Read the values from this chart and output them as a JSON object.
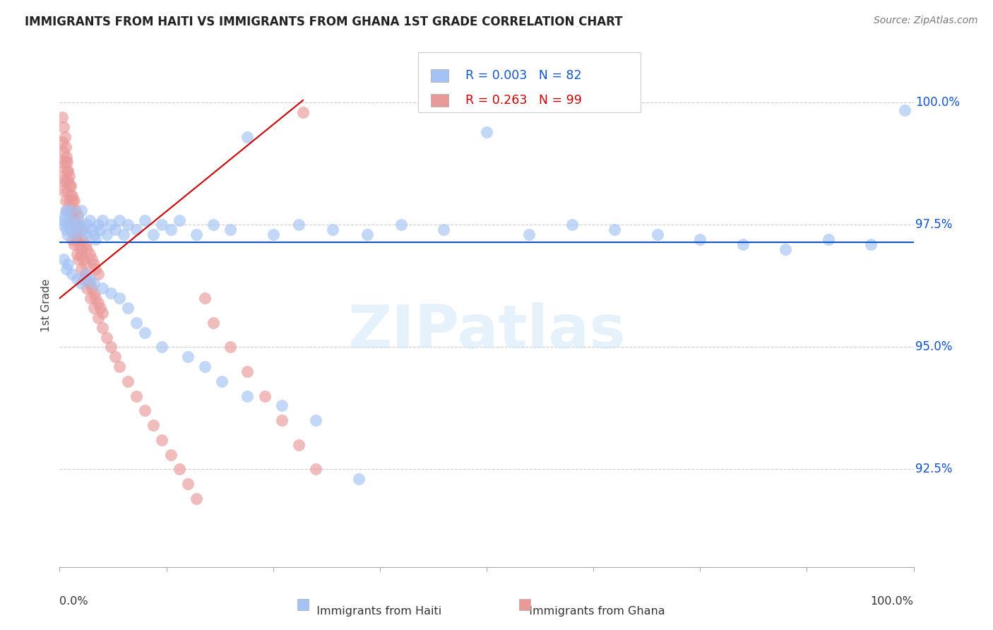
{
  "title": "IMMIGRANTS FROM HAITI VS IMMIGRANTS FROM GHANA 1ST GRADE CORRELATION CHART",
  "source": "Source: ZipAtlas.com",
  "ylabel": "1st Grade",
  "blue_color": "#a4c2f4",
  "pink_color": "#ea9999",
  "blue_line_color": "#1155cc",
  "red_line_color": "#cc0000",
  "ytick_positions": [
    92.5,
    95.0,
    97.5,
    100.0
  ],
  "ytick_labels": [
    "92.5%",
    "95.0%",
    "97.5%",
    "100.0%"
  ],
  "xlim": [
    0.0,
    1.0
  ],
  "ylim": [
    90.5,
    101.2
  ],
  "haiti_hline_y": 97.15,
  "ghana_line_x0": 0.0,
  "ghana_line_y0": 96.0,
  "ghana_line_x1": 0.285,
  "ghana_line_y1": 100.05,
  "haiti_x": [
    0.003,
    0.005,
    0.006,
    0.007,
    0.008,
    0.009,
    0.01,
    0.012,
    0.013,
    0.015,
    0.017,
    0.02,
    0.022,
    0.025,
    0.028,
    0.03,
    0.032,
    0.035,
    0.038,
    0.04,
    0.042,
    0.045,
    0.048,
    0.05,
    0.055,
    0.06,
    0.065,
    0.07,
    0.075,
    0.08,
    0.09,
    0.1,
    0.11,
    0.12,
    0.13,
    0.14,
    0.16,
    0.18,
    0.2,
    0.22,
    0.25,
    0.28,
    0.32,
    0.36,
    0.4,
    0.45,
    0.5,
    0.55,
    0.6,
    0.65,
    0.7,
    0.75,
    0.8,
    0.85,
    0.9,
    0.95,
    0.99,
    0.005,
    0.008,
    0.01,
    0.015,
    0.02,
    0.025,
    0.03,
    0.035,
    0.04,
    0.05,
    0.06,
    0.07,
    0.08,
    0.09,
    0.1,
    0.12,
    0.15,
    0.17,
    0.19,
    0.22,
    0.26,
    0.3,
    0.35
  ],
  "haiti_y": [
    97.5,
    97.6,
    97.7,
    97.8,
    97.4,
    97.3,
    97.5,
    97.6,
    97.8,
    97.4,
    97.3,
    97.5,
    97.6,
    97.8,
    97.4,
    97.3,
    97.5,
    97.6,
    97.4,
    97.3,
    97.2,
    97.5,
    97.4,
    97.6,
    97.3,
    97.5,
    97.4,
    97.6,
    97.3,
    97.5,
    97.4,
    97.6,
    97.3,
    97.5,
    97.4,
    97.6,
    97.3,
    97.5,
    97.4,
    99.3,
    97.3,
    97.5,
    97.4,
    97.3,
    97.5,
    97.4,
    99.4,
    97.3,
    97.5,
    97.4,
    97.3,
    97.2,
    97.1,
    97.0,
    97.2,
    97.1,
    99.85,
    96.8,
    96.6,
    96.7,
    96.5,
    96.4,
    96.3,
    96.5,
    96.4,
    96.3,
    96.2,
    96.1,
    96.0,
    95.8,
    95.5,
    95.3,
    95.0,
    94.8,
    94.6,
    94.3,
    94.0,
    93.8,
    93.5,
    92.3
  ],
  "ghana_x": [
    0.003,
    0.005,
    0.006,
    0.007,
    0.008,
    0.009,
    0.01,
    0.01,
    0.012,
    0.013,
    0.015,
    0.015,
    0.017,
    0.018,
    0.02,
    0.02,
    0.022,
    0.025,
    0.025,
    0.028,
    0.03,
    0.03,
    0.032,
    0.035,
    0.038,
    0.04,
    0.042,
    0.045,
    0.048,
    0.05,
    0.003,
    0.005,
    0.007,
    0.009,
    0.011,
    0.013,
    0.015,
    0.017,
    0.019,
    0.021,
    0.023,
    0.025,
    0.027,
    0.03,
    0.032,
    0.035,
    0.038,
    0.04,
    0.042,
    0.045,
    0.003,
    0.005,
    0.007,
    0.009,
    0.011,
    0.013,
    0.015,
    0.017,
    0.019,
    0.021,
    0.003,
    0.005,
    0.007,
    0.009,
    0.011,
    0.013,
    0.015,
    0.017,
    0.02,
    0.022,
    0.025,
    0.028,
    0.032,
    0.036,
    0.04,
    0.045,
    0.05,
    0.055,
    0.06,
    0.065,
    0.07,
    0.08,
    0.09,
    0.1,
    0.11,
    0.12,
    0.13,
    0.14,
    0.15,
    0.16,
    0.17,
    0.18,
    0.2,
    0.22,
    0.24,
    0.26,
    0.28,
    0.3,
    0.285
  ],
  "ghana_y": [
    99.7,
    99.5,
    99.3,
    99.1,
    98.9,
    98.8,
    98.6,
    98.4,
    98.3,
    98.1,
    98.0,
    97.8,
    97.7,
    97.5,
    97.4,
    97.2,
    97.1,
    97.0,
    96.9,
    96.8,
    96.7,
    96.5,
    96.4,
    96.3,
    96.2,
    96.1,
    96.0,
    95.9,
    95.8,
    95.7,
    99.2,
    99.0,
    98.8,
    98.6,
    98.5,
    98.3,
    98.1,
    98.0,
    97.8,
    97.7,
    97.5,
    97.4,
    97.2,
    97.1,
    97.0,
    96.9,
    96.8,
    96.7,
    96.6,
    96.5,
    98.8,
    98.6,
    98.4,
    98.2,
    98.0,
    97.8,
    97.7,
    97.5,
    97.3,
    97.2,
    98.4,
    98.2,
    98.0,
    97.8,
    97.6,
    97.4,
    97.2,
    97.1,
    96.9,
    96.8,
    96.6,
    96.4,
    96.2,
    96.0,
    95.8,
    95.6,
    95.4,
    95.2,
    95.0,
    94.8,
    94.6,
    94.3,
    94.0,
    93.7,
    93.4,
    93.1,
    92.8,
    92.5,
    92.2,
    91.9,
    96.0,
    95.5,
    95.0,
    94.5,
    94.0,
    93.5,
    93.0,
    92.5,
    99.8
  ]
}
